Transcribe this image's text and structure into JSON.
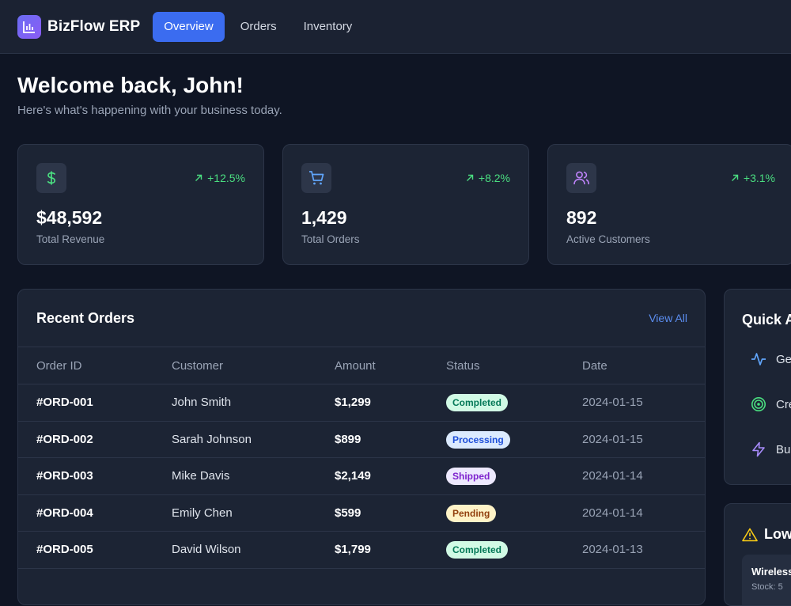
{
  "app": {
    "name": "BizFlow ERP",
    "logo_icon": "bar-chart-icon"
  },
  "nav": [
    {
      "label": "Overview",
      "active": true
    },
    {
      "label": "Orders",
      "active": false
    },
    {
      "label": "Inventory",
      "active": false
    }
  ],
  "welcome": {
    "title": "Welcome back, John!",
    "subtitle": "Here's what's happening with your business today."
  },
  "stats": [
    {
      "icon": "dollar-icon",
      "value": "$48,592",
      "label": "Total Revenue",
      "change": "+12.5%"
    },
    {
      "icon": "cart-icon",
      "value": "1,429",
      "label": "Total Orders",
      "change": "+8.2%"
    },
    {
      "icon": "users-icon",
      "value": "892",
      "label": "Active Customers",
      "change": "+3.1%"
    }
  ],
  "orders": {
    "title": "Recent Orders",
    "view_all": "View All",
    "columns": [
      "Order ID",
      "Customer",
      "Amount",
      "Status",
      "Date"
    ],
    "rows": [
      {
        "id": "#ORD-001",
        "customer": "John Smith",
        "amount": "$1,299",
        "status": "Completed",
        "date": "2024-01-15"
      },
      {
        "id": "#ORD-002",
        "customer": "Sarah Johnson",
        "amount": "$899",
        "status": "Processing",
        "date": "2024-01-15"
      },
      {
        "id": "#ORD-003",
        "customer": "Mike Davis",
        "amount": "$2,149",
        "status": "Shipped",
        "date": "2024-01-14"
      },
      {
        "id": "#ORD-004",
        "customer": "Emily Chen",
        "amount": "$599",
        "status": "Pending",
        "date": "2024-01-14"
      },
      {
        "id": "#ORD-005",
        "customer": "David Wilson",
        "amount": "$1,799",
        "status": "Completed",
        "date": "2024-01-13"
      }
    ]
  },
  "status_colors": {
    "Completed": {
      "bg": "#d1fae5",
      "fg": "#047857"
    },
    "Processing": {
      "bg": "#dbeafe",
      "fg": "#1d4ed8"
    },
    "Shipped": {
      "bg": "#ede9fe",
      "fg": "#7e22ce"
    },
    "Pending": {
      "bg": "#fef3c7",
      "fg": "#92400e"
    }
  },
  "quick_actions": {
    "title": "Quick A",
    "items": [
      {
        "icon": "activity-icon",
        "label": "Ge"
      },
      {
        "icon": "target-icon",
        "label": "Cre"
      },
      {
        "icon": "lightning-icon",
        "label": "Bul"
      }
    ]
  },
  "low_stock": {
    "title": "Low",
    "item_name": "Wireless",
    "item_stock": "Stock: 5"
  },
  "colors": {
    "accent": "#3b6cf0",
    "positive": "#4ade80",
    "background": "#0f1524",
    "card": "#1c2434"
  }
}
